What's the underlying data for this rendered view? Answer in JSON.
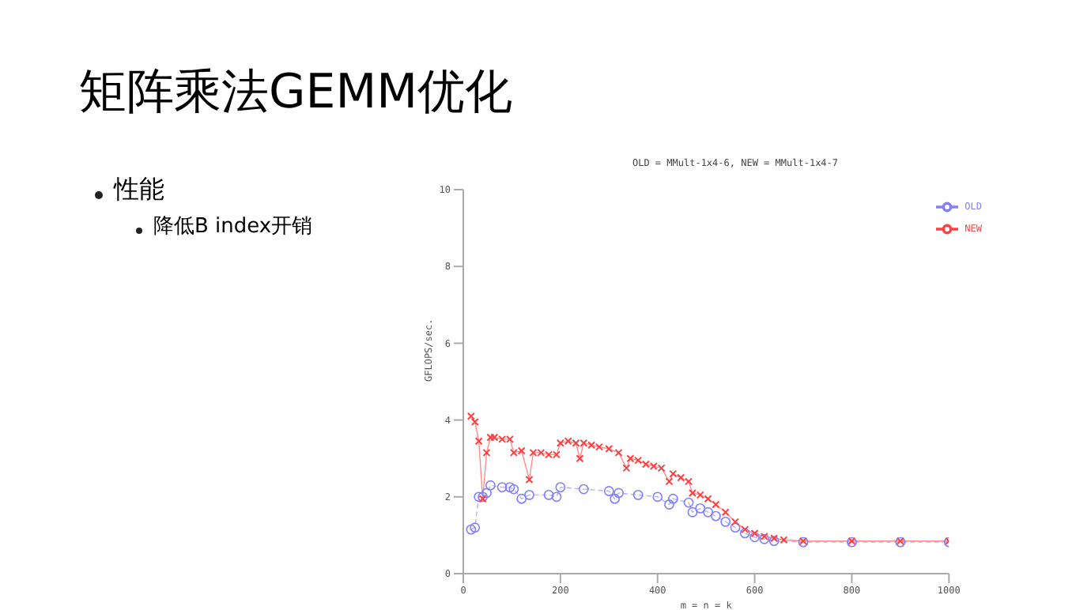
{
  "chart_data": {
    "type": "line",
    "title": "OLD = MMult-1x4-6, NEW = MMult-1x4-7",
    "annotations": [
      "矩阵乘法GEMM优化",
      "性能",
      "降低B index开销"
    ],
    "xlabel": "m = n = k",
    "ylabel": "GFLOPS/sec.",
    "xlim": [
      0,
      1000
    ],
    "xticks": [
      0,
      200,
      400,
      600,
      800,
      1000
    ],
    "ylim": [
      0,
      10
    ],
    "yticks": [
      0,
      2,
      4,
      6,
      8,
      10
    ],
    "grid": false,
    "legend": "top right",
    "series": [
      {
        "name": "OLD",
        "color": "#8080ff",
        "marker": "circle",
        "line_style": "dashed",
        "x": [
          16,
          24,
          32,
          40,
          48,
          56,
          80,
          96,
          104,
          120,
          136,
          176,
          192,
          200,
          248,
          300,
          312,
          320,
          360,
          400,
          424,
          432,
          464,
          472,
          488,
          504,
          520,
          540,
          560,
          580,
          600,
          620,
          640,
          700,
          800,
          900,
          1000
        ],
        "values": [
          1.15,
          1.2,
          2.0,
          2.0,
          2.1,
          2.3,
          2.25,
          2.25,
          2.2,
          1.95,
          2.05,
          2.05,
          2.0,
          2.25,
          2.2,
          2.15,
          1.95,
          2.1,
          2.05,
          2.0,
          1.8,
          1.95,
          1.85,
          1.6,
          1.7,
          1.6,
          1.5,
          1.35,
          1.2,
          1.05,
          0.95,
          0.9,
          0.85,
          0.82,
          0.82,
          0.82,
          0.82
        ]
      },
      {
        "name": "NEW",
        "color": "#ff4040",
        "marker": "cross",
        "line_style": "solid",
        "x": [
          16,
          24,
          32,
          40,
          48,
          56,
          64,
          80,
          96,
          104,
          120,
          136,
          144,
          160,
          176,
          192,
          200,
          216,
          232,
          240,
          248,
          264,
          280,
          300,
          320,
          336,
          344,
          360,
          376,
          392,
          408,
          424,
          432,
          448,
          464,
          472,
          488,
          504,
          520,
          540,
          560,
          580,
          600,
          620,
          640,
          660,
          700,
          800,
          900,
          1000
        ],
        "values": [
          4.1,
          3.95,
          3.45,
          1.95,
          3.15,
          3.55,
          3.55,
          3.5,
          3.5,
          3.15,
          3.2,
          2.45,
          3.15,
          3.15,
          3.1,
          3.1,
          3.4,
          3.45,
          3.4,
          3.0,
          3.4,
          3.35,
          3.3,
          3.25,
          3.15,
          2.75,
          3.0,
          2.95,
          2.85,
          2.8,
          2.75,
          2.4,
          2.6,
          2.5,
          2.4,
          2.1,
          2.05,
          1.95,
          1.8,
          1.6,
          1.35,
          1.15,
          1.05,
          0.97,
          0.92,
          0.88,
          0.85,
          0.85,
          0.85,
          0.85
        ]
      }
    ]
  }
}
